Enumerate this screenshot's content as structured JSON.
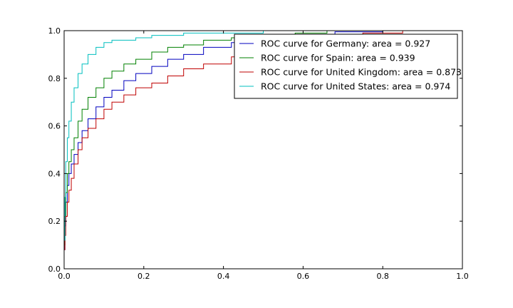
{
  "chart_data": {
    "type": "line",
    "title": "",
    "xlabel": "",
    "ylabel": "",
    "xlim": [
      0.0,
      1.0
    ],
    "ylim": [
      0.0,
      1.0
    ],
    "xticks": [
      "0.0",
      "0.2",
      "0.4",
      "0.6",
      "0.8",
      "1.0"
    ],
    "yticks": [
      "0.0",
      "0.2",
      "0.4",
      "0.6",
      "0.8",
      "1.0"
    ],
    "grid": false,
    "legend_position": "top-right",
    "series": [
      {
        "name": "ROC curve for Germany: area = 0.927",
        "color": "#0000bf",
        "points": [
          [
            0,
            0.08
          ],
          [
            0.002,
            0.18
          ],
          [
            0.004,
            0.28
          ],
          [
            0.008,
            0.35
          ],
          [
            0.012,
            0.4
          ],
          [
            0.018,
            0.44
          ],
          [
            0.025,
            0.48
          ],
          [
            0.035,
            0.53
          ],
          [
            0.045,
            0.58
          ],
          [
            0.06,
            0.63
          ],
          [
            0.08,
            0.68
          ],
          [
            0.1,
            0.72
          ],
          [
            0.12,
            0.75
          ],
          [
            0.15,
            0.79
          ],
          [
            0.18,
            0.82
          ],
          [
            0.22,
            0.85
          ],
          [
            0.26,
            0.88
          ],
          [
            0.3,
            0.9
          ],
          [
            0.35,
            0.93
          ],
          [
            0.42,
            0.95
          ],
          [
            0.5,
            0.97
          ],
          [
            0.58,
            0.98
          ],
          [
            0.68,
            0.995
          ],
          [
            0.8,
            1.0
          ],
          [
            0.93,
            1.0
          ]
        ]
      },
      {
        "name": "ROC curve for Spain: area = 0.939",
        "color": "#008000",
        "points": [
          [
            0,
            0.1
          ],
          [
            0.002,
            0.22
          ],
          [
            0.004,
            0.32
          ],
          [
            0.008,
            0.4
          ],
          [
            0.012,
            0.45
          ],
          [
            0.018,
            0.5
          ],
          [
            0.025,
            0.55
          ],
          [
            0.035,
            0.62
          ],
          [
            0.045,
            0.67
          ],
          [
            0.06,
            0.72
          ],
          [
            0.08,
            0.76
          ],
          [
            0.1,
            0.8
          ],
          [
            0.12,
            0.83
          ],
          [
            0.15,
            0.86
          ],
          [
            0.18,
            0.88
          ],
          [
            0.22,
            0.91
          ],
          [
            0.26,
            0.93
          ],
          [
            0.3,
            0.94
          ],
          [
            0.35,
            0.96
          ],
          [
            0.42,
            0.97
          ],
          [
            0.5,
            0.98
          ],
          [
            0.58,
            0.99
          ],
          [
            0.66,
            1.0
          ],
          [
            0.8,
            1.0
          ],
          [
            0.93,
            1.0
          ]
        ]
      },
      {
        "name": "ROC curve for United Kingdom: area = 0.873",
        "color": "#bf0000",
        "points": [
          [
            0,
            0.08
          ],
          [
            0.002,
            0.14
          ],
          [
            0.004,
            0.22
          ],
          [
            0.008,
            0.28
          ],
          [
            0.012,
            0.33
          ],
          [
            0.018,
            0.38
          ],
          [
            0.025,
            0.44
          ],
          [
            0.035,
            0.5
          ],
          [
            0.045,
            0.55
          ],
          [
            0.06,
            0.59
          ],
          [
            0.08,
            0.63
          ],
          [
            0.1,
            0.67
          ],
          [
            0.12,
            0.7
          ],
          [
            0.15,
            0.73
          ],
          [
            0.18,
            0.76
          ],
          [
            0.22,
            0.78
          ],
          [
            0.26,
            0.81
          ],
          [
            0.3,
            0.84
          ],
          [
            0.35,
            0.86
          ],
          [
            0.42,
            0.89
          ],
          [
            0.5,
            0.92
          ],
          [
            0.58,
            0.95
          ],
          [
            0.66,
            0.97
          ],
          [
            0.75,
            0.99
          ],
          [
            0.85,
            1.0
          ],
          [
            0.93,
            1.0
          ]
        ]
      },
      {
        "name": "ROC curve for United States: area = 0.974",
        "color": "#00bfbf",
        "points": [
          [
            0,
            0.12
          ],
          [
            0.002,
            0.3
          ],
          [
            0.004,
            0.45
          ],
          [
            0.008,
            0.55
          ],
          [
            0.012,
            0.62
          ],
          [
            0.018,
            0.7
          ],
          [
            0.025,
            0.76
          ],
          [
            0.035,
            0.82
          ],
          [
            0.045,
            0.86
          ],
          [
            0.06,
            0.9
          ],
          [
            0.08,
            0.93
          ],
          [
            0.1,
            0.95
          ],
          [
            0.12,
            0.96
          ],
          [
            0.15,
            0.96
          ],
          [
            0.18,
            0.97
          ],
          [
            0.22,
            0.98
          ],
          [
            0.26,
            0.98
          ],
          [
            0.3,
            0.99
          ],
          [
            0.4,
            0.99
          ],
          [
            0.5,
            1.0
          ],
          [
            0.62,
            1.0
          ],
          [
            0.8,
            1.0
          ],
          [
            0.93,
            1.0
          ]
        ]
      }
    ]
  }
}
